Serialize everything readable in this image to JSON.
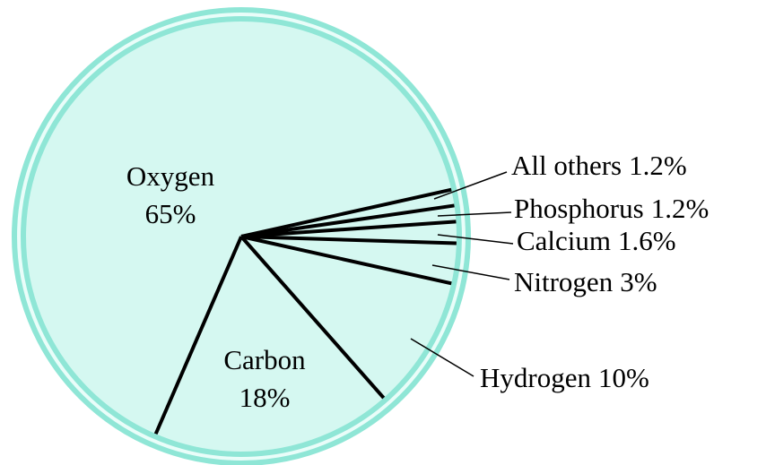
{
  "chart_data": {
    "type": "pie",
    "categories": [
      "Oxygen",
      "Carbon",
      "Hydrogen",
      "Nitrogen",
      "Calcium",
      "Phosphorus",
      "All others"
    ],
    "values": [
      65,
      18,
      10,
      3,
      1.6,
      1.2,
      1.2
    ],
    "value_labels": [
      "65%",
      "18%",
      "10%",
      "3%",
      "1.6%",
      "1.2%",
      "1.2%"
    ],
    "color": "#d5f8f1"
  }
}
